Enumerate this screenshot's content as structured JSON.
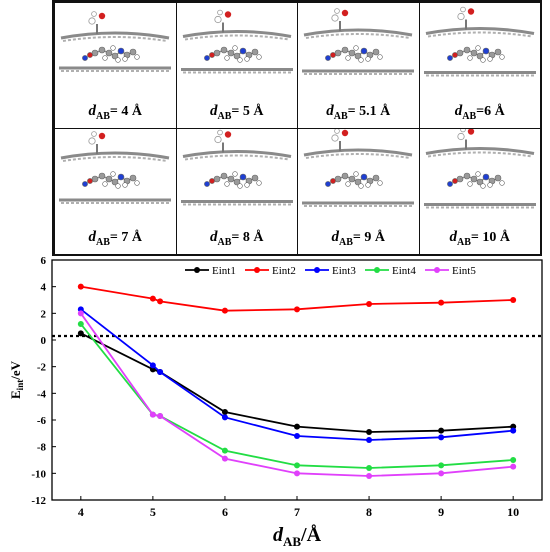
{
  "panels": [
    {
      "id": "p1",
      "value": "4 Å",
      "pre": "= "
    },
    {
      "id": "p2",
      "value": "5 Å",
      "pre": "= "
    },
    {
      "id": "p3",
      "value": "5.1 Å",
      "pre": "= "
    },
    {
      "id": "p4",
      "value": "6 Å",
      "pre": "="
    },
    {
      "id": "p5",
      "value": "7 Å",
      "pre": "= "
    },
    {
      "id": "p6",
      "value": "8 Å",
      "pre": "= "
    },
    {
      "id": "p7",
      "value": "9 Å",
      "pre": "= "
    },
    {
      "id": "p8",
      "value": "10 Å",
      "pre": "= "
    }
  ],
  "panel_label": {
    "d": "d",
    "sub": "AB"
  },
  "colors": {
    "graphene": "#8a8a8a",
    "carbon": "#9a9a9a",
    "oxygen": "#d21f1f",
    "nitrogen": "#1f3fd2",
    "hydrogen": "#ffffff"
  },
  "chart_data": {
    "type": "line",
    "x": [
      4,
      5,
      5.1,
      6,
      7,
      8,
      9,
      10
    ],
    "series": [
      {
        "name": "Eint1",
        "color": "#000000",
        "values": [
          0.5,
          -2.2,
          -2.4,
          -5.4,
          -6.5,
          -6.9,
          -6.8,
          -6.5
        ]
      },
      {
        "name": "Eint2",
        "color": "#ff0000",
        "values": [
          4.0,
          3.1,
          2.9,
          2.2,
          2.3,
          2.7,
          2.8,
          3.0
        ]
      },
      {
        "name": "Eint3",
        "color": "#0000ff",
        "values": [
          2.3,
          -1.9,
          -2.4,
          -5.8,
          -7.2,
          -7.5,
          -7.3,
          -6.8
        ]
      },
      {
        "name": "Eint4",
        "color": "#22dd44",
        "values": [
          1.2,
          -5.6,
          -5.7,
          -8.3,
          -9.4,
          -9.6,
          -9.4,
          -9.0
        ]
      },
      {
        "name": "Eint5",
        "color": "#e040fb",
        "values": [
          2.0,
          -5.6,
          -5.7,
          -8.9,
          -10.0,
          -10.2,
          -10.0,
          -9.5
        ]
      }
    ],
    "reference_line_y": 0.3,
    "xlim": [
      3.6,
      10.4
    ],
    "ylim": [
      -12,
      6
    ],
    "xticks": [
      "4",
      "5",
      "6",
      "7",
      "8",
      "9",
      "10"
    ],
    "yticks": [
      "-12",
      "-10",
      "-8",
      "-6",
      "-4",
      "-2",
      "0",
      "2",
      "4",
      "6"
    ],
    "xlabel": {
      "d": "d",
      "sub": "AB",
      "unit": "/Å"
    },
    "ylabel": {
      "main": "E",
      "sub": "int",
      "unit": "/eV"
    },
    "legend_position": "top-right"
  }
}
